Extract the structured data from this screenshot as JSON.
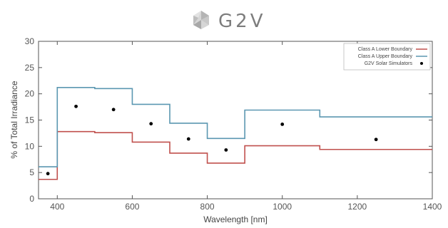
{
  "logo": {
    "text": "G2V"
  },
  "chart_data": {
    "type": "line",
    "title": "",
    "xlabel": "Wavelength [nm]",
    "ylabel": "% of Total Irradiance",
    "xlim": [
      350,
      1400
    ],
    "ylim": [
      0,
      30
    ],
    "xticks": [
      400,
      600,
      800,
      1000,
      1200,
      1400
    ],
    "yticks": [
      0,
      5,
      10,
      15,
      20,
      25,
      30
    ],
    "grid": false,
    "legend_position": "top-right",
    "series": [
      {
        "name": "Class A Lower Boundary",
        "style": "step",
        "color": "#c0504d",
        "bins": [
          [
            350,
            400,
            3.7
          ],
          [
            400,
            500,
            12.8
          ],
          [
            500,
            600,
            12.6
          ],
          [
            600,
            700,
            10.8
          ],
          [
            700,
            800,
            8.7
          ],
          [
            800,
            900,
            6.8
          ],
          [
            900,
            1100,
            10.1
          ],
          [
            1100,
            1400,
            9.4
          ]
        ]
      },
      {
        "name": "Class A Upper Boundary",
        "style": "step",
        "color": "#5b97b1",
        "bins": [
          [
            350,
            400,
            6.1
          ],
          [
            400,
            500,
            21.2
          ],
          [
            500,
            600,
            21.0
          ],
          [
            600,
            700,
            18.0
          ],
          [
            700,
            800,
            14.4
          ],
          [
            800,
            900,
            11.5
          ],
          [
            900,
            1100,
            16.9
          ],
          [
            1100,
            1400,
            15.6
          ]
        ]
      },
      {
        "name": "G2V Solar Simulators",
        "style": "scatter",
        "color": "#000000",
        "x": [
          375,
          450,
          550,
          650,
          750,
          850,
          1000,
          1250
        ],
        "y": [
          4.8,
          17.6,
          17.0,
          14.3,
          11.4,
          9.3,
          14.2,
          11.3
        ]
      }
    ]
  }
}
